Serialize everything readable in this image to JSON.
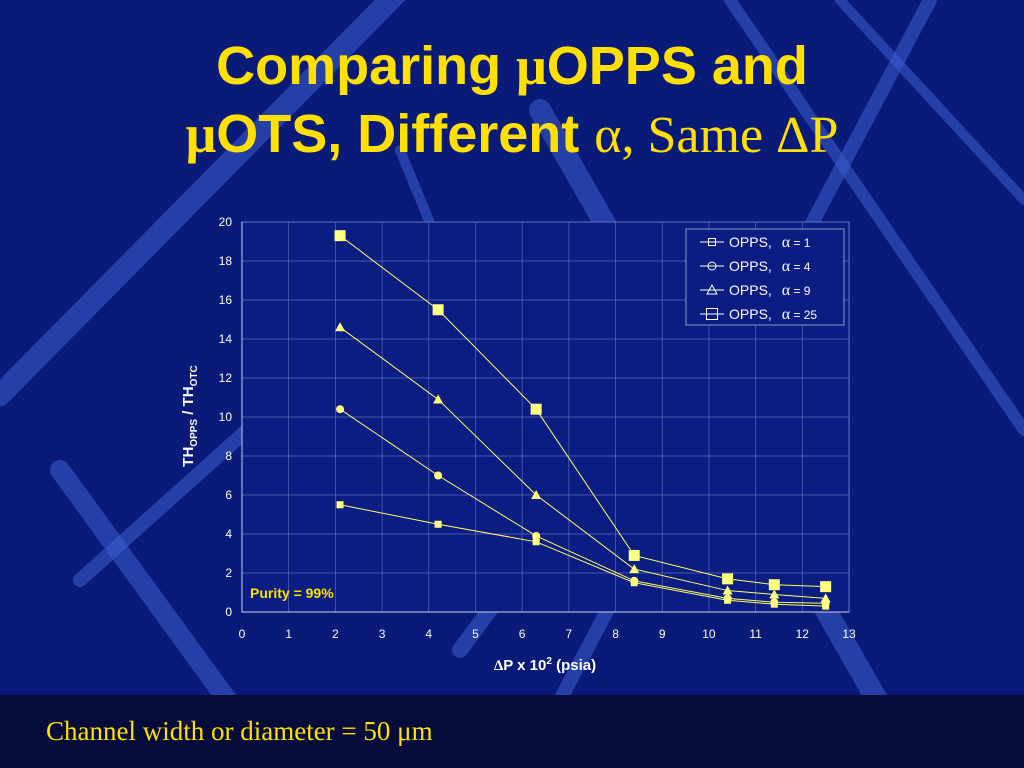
{
  "slide": {
    "title_line1_a": "Comparing ",
    "title_line1_mu": "μ",
    "title_line1_b": "OPPS and",
    "title_line2_mu": "μ",
    "title_line2_a": "OTS, Different ",
    "title_line2_serif": "α, Same ΔP",
    "footer": "Channel width or diameter = 50 μm"
  },
  "colors": {
    "background": "#0a1a78",
    "title": "#ffe000",
    "series_line": "#ffff66",
    "marker": "#ffff80",
    "axis_text": "#ffffff"
  },
  "chart_data": {
    "type": "line",
    "xlabel_delta": "Δ",
    "xlabel_main": "P x 10",
    "xlabel_sup": "2",
    "xlabel_unit": " (psia)",
    "ylabel_a": "TH",
    "ylabel_sub1": "OPPS",
    "ylabel_b": " / TH",
    "ylabel_sub2": "OTC",
    "xlim": [
      0,
      13
    ],
    "ylim": [
      0,
      20
    ],
    "x_ticks": [
      0,
      1,
      2,
      3,
      4,
      5,
      6,
      7,
      8,
      9,
      10,
      11,
      12,
      13
    ],
    "y_ticks": [
      0,
      2,
      4,
      6,
      8,
      10,
      12,
      14,
      16,
      18,
      20
    ],
    "grid": true,
    "legend_position": "top-right",
    "annotation": "Purity = 99%",
    "x": [
      2.1,
      4.2,
      6.3,
      8.4,
      10.4,
      11.4,
      12.5
    ],
    "series": [
      {
        "name": "OPPS, α = 1",
        "legend_prefix": "OPPS, ",
        "legend_alpha": "α",
        "legend_suffix": " = 1",
        "marker": "square-small",
        "values": [
          5.5,
          4.5,
          3.6,
          1.5,
          0.6,
          0.4,
          0.3
        ]
      },
      {
        "name": "OPPS, α = 4",
        "legend_prefix": "OPPS, ",
        "legend_alpha": "α",
        "legend_suffix": " = 4",
        "marker": "circle",
        "values": [
          10.4,
          7.0,
          3.9,
          1.6,
          0.7,
          0.5,
          0.45
        ]
      },
      {
        "name": "OPPS, α = 9",
        "legend_prefix": "OPPS, ",
        "legend_alpha": "α",
        "legend_suffix": " = 9",
        "marker": "triangle",
        "values": [
          14.6,
          10.9,
          6.0,
          2.2,
          1.1,
          0.9,
          0.7
        ]
      },
      {
        "name": "OPPS, α = 25",
        "legend_prefix": "OPPS, ",
        "legend_alpha": "α",
        "legend_suffix": " = 25",
        "marker": "square-large",
        "values": [
          19.3,
          15.5,
          10.4,
          2.9,
          1.7,
          1.4,
          1.3
        ]
      }
    ]
  }
}
